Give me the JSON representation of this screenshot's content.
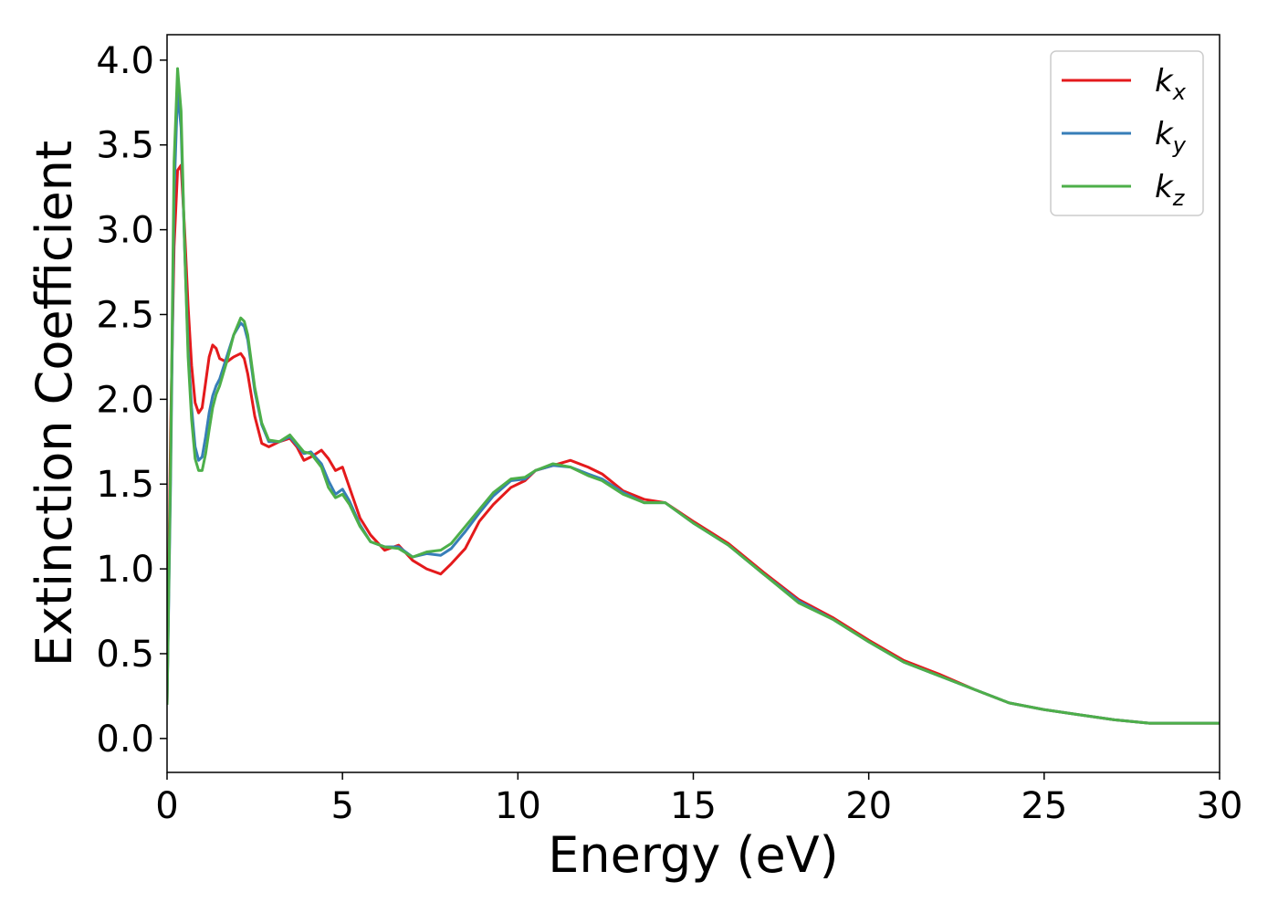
{
  "chart_data": {
    "type": "line",
    "title": "",
    "xlabel": "Energy (eV)",
    "ylabel": "Extinction Coefficient",
    "xlim": [
      0,
      30
    ],
    "ylim": [
      -0.2,
      4.15
    ],
    "xticks": [
      0,
      5,
      10,
      15,
      20,
      25,
      30
    ],
    "yticks": [
      0.0,
      0.5,
      1.0,
      1.5,
      2.0,
      2.5,
      3.0,
      3.5,
      4.0
    ],
    "xtick_labels": [
      "0",
      "5",
      "10",
      "15",
      "20",
      "25",
      "30"
    ],
    "ytick_labels": [
      "0.0",
      "0.5",
      "1.0",
      "1.5",
      "2.0",
      "2.5",
      "3.0",
      "3.5",
      "4.0"
    ],
    "grid": false,
    "legend_position": "top-right",
    "series": [
      {
        "name": "k_x",
        "label_base": "k",
        "label_sub": "x",
        "color": "#e41a1c",
        "x": [
          0,
          0.1,
          0.2,
          0.3,
          0.4,
          0.5,
          0.6,
          0.7,
          0.8,
          0.9,
          1.0,
          1.1,
          1.2,
          1.3,
          1.4,
          1.5,
          1.7,
          1.9,
          2.1,
          2.2,
          2.3,
          2.5,
          2.7,
          2.9,
          3.2,
          3.5,
          3.7,
          3.9,
          4.1,
          4.4,
          4.6,
          4.8,
          5.0,
          5.2,
          5.5,
          5.8,
          6.2,
          6.6,
          7.0,
          7.4,
          7.8,
          8.1,
          8.5,
          8.9,
          9.3,
          9.8,
          10.2,
          10.5,
          11.0,
          11.5,
          12.0,
          12.4,
          13.0,
          13.6,
          14.2,
          15.0,
          16.0,
          17.0,
          18.0,
          19.0,
          20.0,
          21.0,
          22.0,
          23.0,
          24.0,
          25.0,
          26.0,
          27.0,
          28.0,
          29.0,
          30.0
        ],
        "y": [
          0.2,
          1.8,
          2.9,
          3.35,
          3.38,
          3.0,
          2.55,
          2.2,
          1.98,
          1.92,
          1.95,
          2.1,
          2.25,
          2.32,
          2.3,
          2.24,
          2.22,
          2.25,
          2.27,
          2.24,
          2.15,
          1.9,
          1.74,
          1.72,
          1.75,
          1.77,
          1.72,
          1.64,
          1.66,
          1.7,
          1.65,
          1.58,
          1.6,
          1.48,
          1.3,
          1.2,
          1.11,
          1.14,
          1.05,
          1.0,
          0.97,
          1.03,
          1.12,
          1.28,
          1.38,
          1.48,
          1.52,
          1.58,
          1.61,
          1.64,
          1.6,
          1.56,
          1.46,
          1.41,
          1.39,
          1.28,
          1.15,
          0.98,
          0.82,
          0.71,
          0.58,
          0.46,
          0.38,
          0.29,
          0.21,
          0.17,
          0.14,
          0.11,
          0.09,
          0.09,
          0.09
        ]
      },
      {
        "name": "k_y",
        "label_base": "k",
        "label_sub": "y",
        "color": "#377eb8",
        "x": [
          0,
          0.1,
          0.2,
          0.3,
          0.4,
          0.5,
          0.6,
          0.7,
          0.8,
          0.9,
          1.0,
          1.1,
          1.2,
          1.3,
          1.4,
          1.5,
          1.7,
          1.9,
          2.1,
          2.2,
          2.3,
          2.5,
          2.7,
          2.9,
          3.2,
          3.5,
          3.7,
          3.9,
          4.1,
          4.4,
          4.6,
          4.8,
          5.0,
          5.2,
          5.5,
          5.8,
          6.2,
          6.6,
          7.0,
          7.4,
          7.8,
          8.1,
          8.5,
          8.9,
          9.3,
          9.8,
          10.2,
          10.5,
          11.0,
          11.5,
          12.0,
          12.4,
          13.0,
          13.6,
          14.2,
          15.0,
          16.0,
          17.0,
          18.0,
          19.0,
          20.0,
          21.0,
          22.0,
          23.0,
          24.0,
          25.0,
          26.0,
          27.0,
          28.0,
          29.0,
          30.0
        ],
        "y": [
          0.2,
          1.5,
          3.2,
          3.82,
          3.6,
          2.9,
          2.3,
          1.95,
          1.72,
          1.64,
          1.66,
          1.78,
          1.92,
          2.02,
          2.08,
          2.12,
          2.25,
          2.38,
          2.45,
          2.43,
          2.35,
          2.05,
          1.85,
          1.75,
          1.75,
          1.78,
          1.73,
          1.68,
          1.69,
          1.62,
          1.52,
          1.44,
          1.47,
          1.4,
          1.26,
          1.16,
          1.13,
          1.13,
          1.07,
          1.09,
          1.08,
          1.12,
          1.22,
          1.33,
          1.43,
          1.52,
          1.53,
          1.58,
          1.61,
          1.6,
          1.56,
          1.53,
          1.45,
          1.39,
          1.39,
          1.27,
          1.14,
          0.97,
          0.81,
          0.7,
          0.57,
          0.45,
          0.37,
          0.29,
          0.21,
          0.17,
          0.14,
          0.11,
          0.09,
          0.09,
          0.09
        ]
      },
      {
        "name": "k_z",
        "label_base": "k",
        "label_sub": "z",
        "color": "#4daf4a",
        "x": [
          0,
          0.1,
          0.2,
          0.3,
          0.4,
          0.5,
          0.6,
          0.7,
          0.8,
          0.9,
          1.0,
          1.1,
          1.2,
          1.3,
          1.4,
          1.5,
          1.7,
          1.9,
          2.1,
          2.2,
          2.3,
          2.5,
          2.7,
          2.9,
          3.2,
          3.5,
          3.7,
          3.9,
          4.1,
          4.4,
          4.6,
          4.8,
          5.0,
          5.2,
          5.5,
          5.8,
          6.2,
          6.6,
          7.0,
          7.4,
          7.8,
          8.1,
          8.5,
          8.9,
          9.3,
          9.8,
          10.2,
          10.5,
          11.0,
          11.5,
          12.0,
          12.4,
          13.0,
          13.6,
          14.2,
          15.0,
          16.0,
          17.0,
          18.0,
          19.0,
          20.0,
          21.0,
          22.0,
          23.0,
          24.0,
          25.0,
          26.0,
          27.0,
          28.0,
          29.0,
          30.0
        ],
        "y": [
          0.2,
          1.6,
          3.4,
          3.95,
          3.7,
          2.9,
          2.25,
          1.88,
          1.65,
          1.58,
          1.58,
          1.68,
          1.82,
          1.95,
          2.03,
          2.08,
          2.22,
          2.38,
          2.48,
          2.46,
          2.38,
          2.07,
          1.86,
          1.76,
          1.75,
          1.79,
          1.74,
          1.69,
          1.68,
          1.6,
          1.48,
          1.42,
          1.44,
          1.38,
          1.25,
          1.16,
          1.13,
          1.12,
          1.07,
          1.1,
          1.11,
          1.15,
          1.25,
          1.35,
          1.45,
          1.53,
          1.54,
          1.58,
          1.62,
          1.6,
          1.55,
          1.52,
          1.44,
          1.39,
          1.39,
          1.27,
          1.14,
          0.97,
          0.8,
          0.7,
          0.57,
          0.45,
          0.37,
          0.29,
          0.21,
          0.17,
          0.14,
          0.11,
          0.09,
          0.09,
          0.09
        ]
      }
    ]
  }
}
